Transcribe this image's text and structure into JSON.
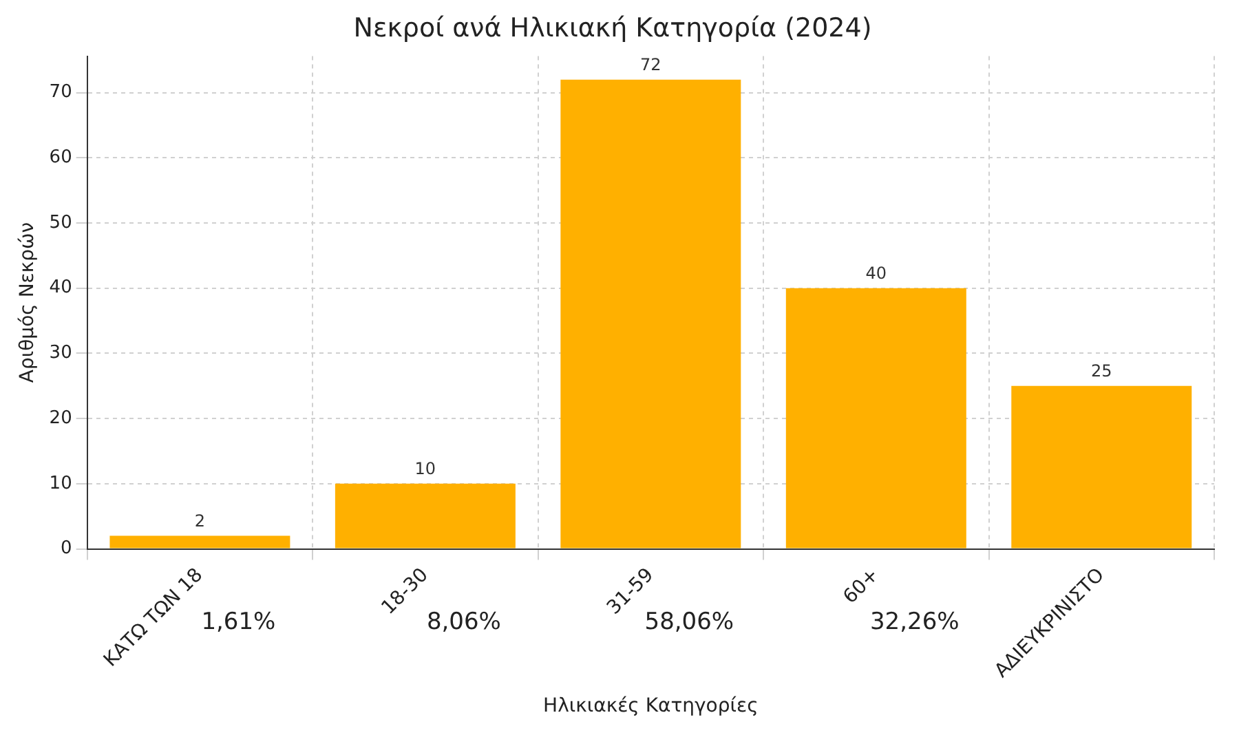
{
  "chart_data": {
    "type": "bar",
    "title": "Νεκροί ανά Ηλικιακή Κατηγορία (2024)",
    "xlabel": "Ηλικιακές Κατηγορίες",
    "ylabel": "Αριθμός Νεκρών",
    "categories": [
      "ΚΑΤΩ ΤΩΝ 18",
      "18-30",
      "31-59",
      "60+",
      "ΑΔΙΕΥΚΡΙΝΙΣΤΟ"
    ],
    "values": [
      2,
      10,
      72,
      40,
      25
    ],
    "color": "#ffb000",
    "ylim": [
      0,
      75.6
    ],
    "yticks": [
      0,
      10,
      20,
      30,
      40,
      50,
      60,
      70
    ],
    "grid": true,
    "data_labels": true,
    "annotations": [
      "1,61%",
      "8,06%",
      "58,06%",
      "32,26%"
    ]
  }
}
